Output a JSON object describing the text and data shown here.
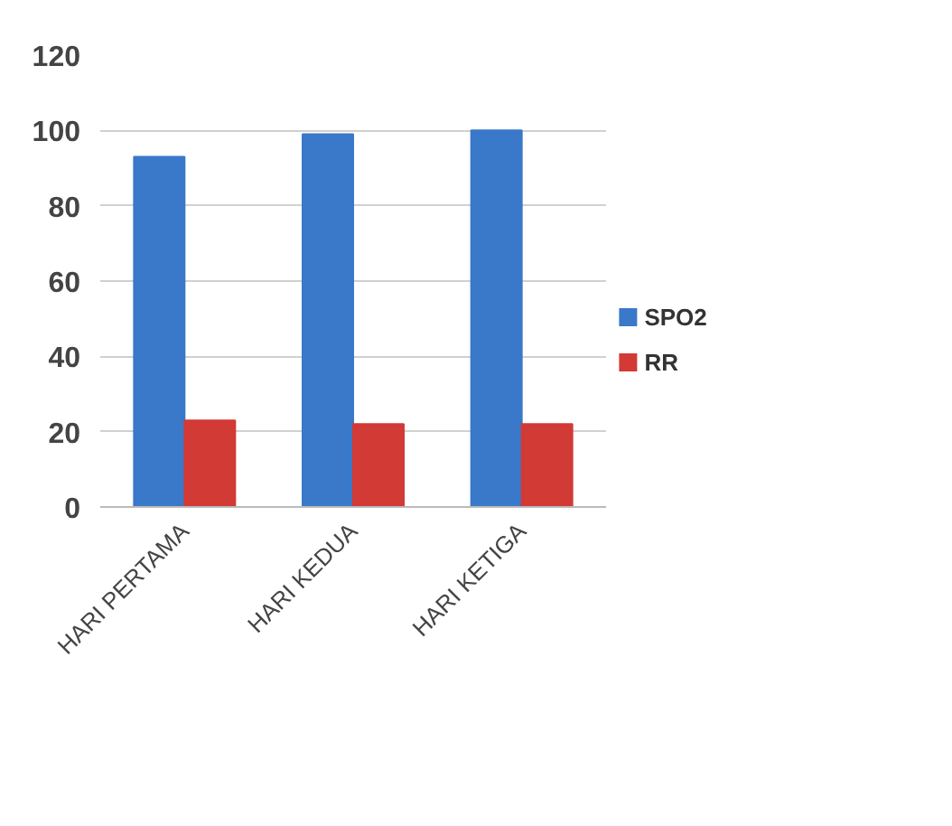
{
  "chart_data": {
    "type": "bar",
    "categories": [
      "HARI PERTAMA",
      "HARI KEDUA",
      "HARI KETIGA"
    ],
    "series": [
      {
        "name": "SPO2",
        "color": "#3a78c9",
        "values": [
          93,
          99,
          100
        ]
      },
      {
        "name": "RR",
        "color": "#d23a35",
        "values": [
          23,
          22,
          22
        ]
      }
    ],
    "ylim": [
      0,
      120
    ],
    "yticks": [
      0,
      20,
      40,
      60,
      80,
      100,
      120
    ],
    "grid": "y",
    "legend": "right"
  }
}
